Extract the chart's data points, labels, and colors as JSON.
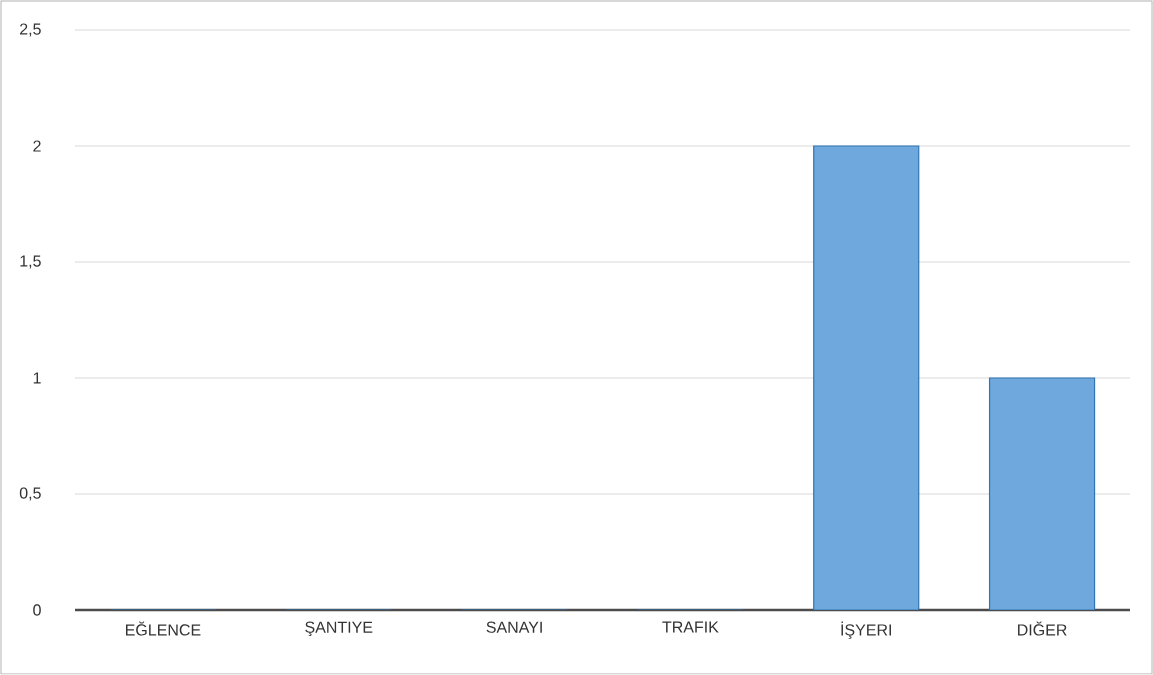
{
  "chart_data": {
    "type": "bar",
    "categories": [
      "EĞLENCE",
      "ŞANTIYE",
      "SANAYI",
      "TRAFIK",
      "İŞYERI",
      "DIĞER"
    ],
    "values": [
      0,
      0,
      0,
      0,
      2,
      1
    ],
    "color": "#6fa8dc",
    "ylim": [
      0,
      2.5
    ],
    "yticks": [
      0,
      {
        "value": 0.5,
        "label": "0,5"
      },
      1,
      {
        "value": 1.5,
        "label": "1,5"
      },
      2,
      {
        "value": 2.5,
        "label": "2,5"
      }
    ],
    "grid": "y"
  }
}
